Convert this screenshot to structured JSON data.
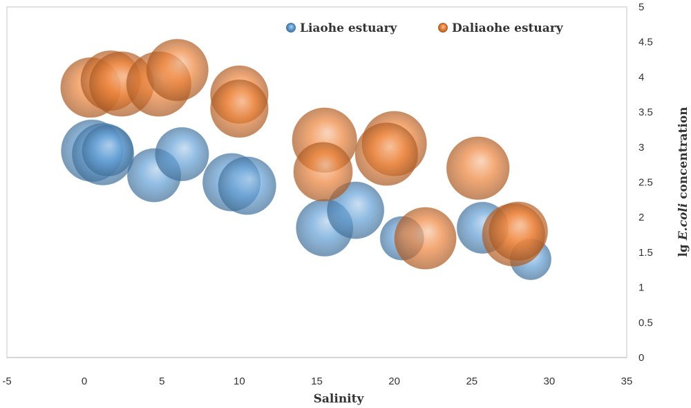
{
  "chart_data": {
    "type": "bubble",
    "xlabel": "Salinity",
    "ylabel_prefix": "lg ",
    "ylabel_italic": "E.coli",
    "ylabel_suffix": " concentration",
    "xlim": [
      -5,
      35
    ],
    "ylim": [
      0,
      5
    ],
    "xticks": [
      "-5",
      "0",
      "5",
      "10",
      "15",
      "20",
      "25",
      "30",
      "35"
    ],
    "yticks": [
      "0",
      "0.5",
      "1",
      "1.5",
      "2",
      "2.5",
      "3",
      "3.5",
      "4",
      "4.5",
      "5"
    ],
    "grid": false,
    "legend_position": "top-right",
    "y_axis_side": "right",
    "series": [
      {
        "name": "Liaohe estuary",
        "color": "#5b9bd5",
        "points": [
          {
            "x": 0.5,
            "y": 2.95,
            "size": 3.2
          },
          {
            "x": 1.2,
            "y": 2.9,
            "size": 3.2
          },
          {
            "x": 1.5,
            "y": 2.95,
            "size": 2.2
          },
          {
            "x": 4.5,
            "y": 2.6,
            "size": 2.4
          },
          {
            "x": 6.3,
            "y": 2.9,
            "size": 2.4
          },
          {
            "x": 9.5,
            "y": 2.5,
            "size": 2.8
          },
          {
            "x": 10.5,
            "y": 2.45,
            "size": 2.8
          },
          {
            "x": 15.5,
            "y": 1.85,
            "size": 2.7
          },
          {
            "x": 17.5,
            "y": 2.1,
            "size": 2.7
          },
          {
            "x": 20.5,
            "y": 1.7,
            "size": 1.6
          },
          {
            "x": 25.7,
            "y": 1.85,
            "size": 2.2
          },
          {
            "x": 28.8,
            "y": 1.4,
            "size": 1.4
          }
        ]
      },
      {
        "name": "Daliaohe estuary",
        "color": "#ed7d31",
        "points": [
          {
            "x": 0.4,
            "y": 3.85,
            "size": 3.0
          },
          {
            "x": 1.7,
            "y": 3.95,
            "size": 3.0
          },
          {
            "x": 2.4,
            "y": 3.9,
            "size": 3.5
          },
          {
            "x": 4.8,
            "y": 3.9,
            "size": 3.5
          },
          {
            "x": 6.0,
            "y": 4.1,
            "size": 3.2
          },
          {
            "x": 10.0,
            "y": 3.75,
            "size": 2.8
          },
          {
            "x": 10.0,
            "y": 3.55,
            "size": 2.8
          },
          {
            "x": 15.5,
            "y": 3.1,
            "size": 3.5
          },
          {
            "x": 15.4,
            "y": 2.65,
            "size": 2.9
          },
          {
            "x": 20.0,
            "y": 3.05,
            "size": 3.5
          },
          {
            "x": 19.5,
            "y": 2.9,
            "size": 3.3
          },
          {
            "x": 25.4,
            "y": 2.7,
            "size": 3.3
          },
          {
            "x": 22.0,
            "y": 1.7,
            "size": 3.2
          },
          {
            "x": 27.7,
            "y": 1.75,
            "size": 3.3
          },
          {
            "x": 28.0,
            "y": 1.8,
            "size": 2.9
          }
        ]
      }
    ]
  }
}
